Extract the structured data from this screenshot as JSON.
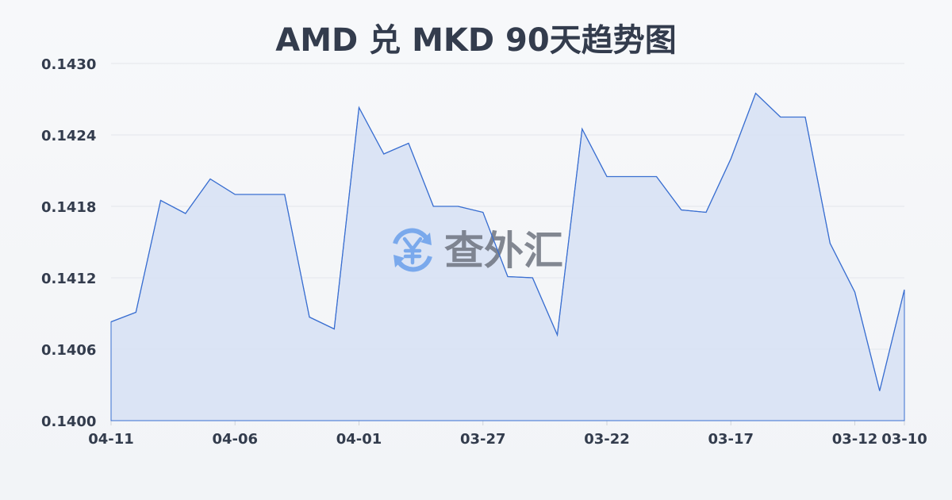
{
  "chart_data": {
    "type": "area",
    "title": "AMD 兑 MKD 90天趋势图",
    "xlabel": "",
    "ylabel": "",
    "ylim": [
      0.14,
      0.143
    ],
    "y_ticks": [
      "0.1430",
      "0.1424",
      "0.1418",
      "0.1412",
      "0.1406",
      "0.1400"
    ],
    "x_ticks": [
      "04-11",
      "04-06",
      "04-01",
      "03-27",
      "03-22",
      "03-17",
      "03-12",
      "03-10"
    ],
    "grid": true,
    "x": [
      "04-11",
      "04-10",
      "04-09",
      "04-08",
      "04-07",
      "04-06",
      "04-05",
      "04-04",
      "04-03",
      "04-02",
      "04-01",
      "03-31",
      "03-30",
      "03-29",
      "03-28",
      "03-27",
      "03-26",
      "03-25",
      "03-24",
      "03-23",
      "03-22",
      "03-21",
      "03-20",
      "03-19",
      "03-18",
      "03-17",
      "03-16",
      "03-15",
      "03-14",
      "03-13",
      "03-12",
      "03-11",
      "03-10"
    ],
    "values": [
      0.14083,
      0.14091,
      0.14185,
      0.14174,
      0.14203,
      0.1419,
      0.1419,
      0.1419,
      0.14087,
      0.14077,
      0.14263,
      0.14224,
      0.14233,
      0.1418,
      0.1418,
      0.14175,
      0.14121,
      0.1412,
      0.14072,
      0.14245,
      0.14205,
      0.14205,
      0.14205,
      0.14177,
      0.14175,
      0.1422,
      0.14275,
      0.14255,
      0.14255,
      0.14149,
      0.14108,
      0.14025,
      0.1411
    ],
    "line_color": "#3a6fd1",
    "fill_color": "#d6e1f5"
  },
  "watermark": {
    "text": "查外汇",
    "icon": "yen-exchange-icon",
    "icon_color": "#7aa9ec"
  }
}
